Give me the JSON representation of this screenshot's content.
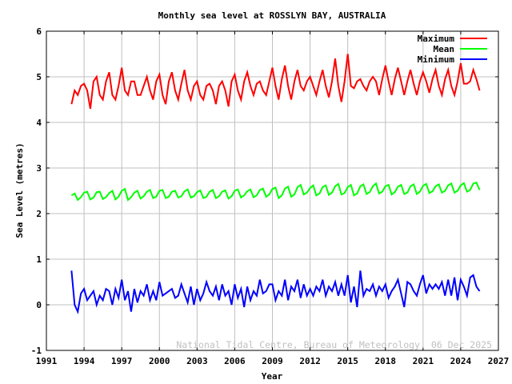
{
  "chart_data": {
    "type": "line",
    "title": "Monthly sea level at ROSSLYN BAY, AUSTRALIA",
    "xlabel": "Year",
    "ylabel": "Sea Level (metres)",
    "xlim": [
      1991,
      2027
    ],
    "ylim": [
      -1,
      6
    ],
    "xticks": [
      "1991",
      "1994",
      "1997",
      "2000",
      "2003",
      "2006",
      "2009",
      "2012",
      "2015",
      "2018",
      "2021",
      "2024",
      "2027"
    ],
    "yticks": [
      "-1",
      "0",
      "1",
      "2",
      "3",
      "4",
      "5",
      "6"
    ],
    "grid": true,
    "legend_position": "top-right",
    "watermark": "National Tidal Centre, Bureau of Meteorology, 06 Dec 2025",
    "x": [
      1993,
      1993.25,
      1993.5,
      1993.75,
      1994,
      1994.25,
      1994.5,
      1994.75,
      1995,
      1995.25,
      1995.5,
      1995.75,
      1996,
      1996.25,
      1996.5,
      1996.75,
      1997,
      1997.25,
      1997.5,
      1997.75,
      1998,
      1998.25,
      1998.5,
      1998.75,
      1999,
      1999.25,
      1999.5,
      1999.75,
      2000,
      2000.25,
      2000.5,
      2000.75,
      2001,
      2001.25,
      2001.5,
      2001.75,
      2002,
      2002.25,
      2002.5,
      2002.75,
      2003,
      2003.25,
      2003.5,
      2003.75,
      2004,
      2004.25,
      2004.5,
      2004.75,
      2005,
      2005.25,
      2005.5,
      2005.75,
      2006,
      2006.25,
      2006.5,
      2006.75,
      2007,
      2007.25,
      2007.5,
      2007.75,
      2008,
      2008.25,
      2008.5,
      2008.75,
      2009,
      2009.25,
      2009.5,
      2009.75,
      2010,
      2010.25,
      2010.5,
      2010.75,
      2011,
      2011.25,
      2011.5,
      2011.75,
      2012,
      2012.25,
      2012.5,
      2012.75,
      2013,
      2013.25,
      2013.5,
      2013.75,
      2014,
      2014.25,
      2014.5,
      2014.75,
      2015,
      2015.25,
      2015.5,
      2015.75,
      2016,
      2016.25,
      2016.5,
      2016.75,
      2017,
      2017.25,
      2017.5,
      2017.75,
      2018,
      2018.25,
      2018.5,
      2018.75,
      2019,
      2019.25,
      2019.5,
      2019.75,
      2020,
      2020.25,
      2020.5,
      2020.75,
      2021,
      2021.25,
      2021.5,
      2021.75,
      2022,
      2022.25,
      2022.5,
      2022.75,
      2023,
      2023.25,
      2023.5,
      2023.75,
      2024,
      2024.25,
      2024.5,
      2024.75,
      2025,
      2025.25,
      2025.5
    ],
    "series": [
      {
        "name": "Maximum",
        "color": "#ff0000",
        "values": [
          4.4,
          4.7,
          4.6,
          4.8,
          4.85,
          4.7,
          4.3,
          4.9,
          5.0,
          4.6,
          4.5,
          4.9,
          5.1,
          4.6,
          4.5,
          4.8,
          5.2,
          4.7,
          4.6,
          4.9,
          4.9,
          4.6,
          4.6,
          4.8,
          5.0,
          4.7,
          4.5,
          4.9,
          5.05,
          4.6,
          4.4,
          4.9,
          5.1,
          4.7,
          4.5,
          4.85,
          5.15,
          4.7,
          4.5,
          4.8,
          4.9,
          4.6,
          4.5,
          4.8,
          4.85,
          4.7,
          4.4,
          4.8,
          4.9,
          4.7,
          4.35,
          4.9,
          5.05,
          4.7,
          4.5,
          4.9,
          5.1,
          4.8,
          4.6,
          4.85,
          4.9,
          4.7,
          4.6,
          4.9,
          5.2,
          4.8,
          4.5,
          4.95,
          5.25,
          4.8,
          4.5,
          4.9,
          5.15,
          4.8,
          4.7,
          4.9,
          5.0,
          4.8,
          4.6,
          4.9,
          5.15,
          4.8,
          4.55,
          4.9,
          5.4,
          4.8,
          4.45,
          4.9,
          5.5,
          4.8,
          4.75,
          4.9,
          4.95,
          4.8,
          4.7,
          4.9,
          5.0,
          4.9,
          4.6,
          4.95,
          5.25,
          4.9,
          4.6,
          4.95,
          5.2,
          4.9,
          4.6,
          4.9,
          5.15,
          4.85,
          4.6,
          4.9,
          5.1,
          4.9,
          4.65,
          4.95,
          5.15,
          4.8,
          4.6,
          4.95,
          5.15,
          4.8,
          4.6,
          4.9,
          5.3,
          4.85,
          4.85,
          4.9,
          5.15,
          4.95,
          4.7
        ]
      },
      {
        "name": "Mean",
        "color": "#00ff00",
        "values": [
          2.4,
          2.44,
          2.3,
          2.36,
          2.46,
          2.48,
          2.31,
          2.35,
          2.47,
          2.48,
          2.32,
          2.36,
          2.45,
          2.5,
          2.31,
          2.37,
          2.5,
          2.54,
          2.3,
          2.36,
          2.46,
          2.5,
          2.33,
          2.38,
          2.48,
          2.52,
          2.34,
          2.37,
          2.5,
          2.52,
          2.34,
          2.37,
          2.48,
          2.5,
          2.35,
          2.38,
          2.49,
          2.53,
          2.35,
          2.38,
          2.47,
          2.51,
          2.34,
          2.37,
          2.48,
          2.52,
          2.34,
          2.38,
          2.48,
          2.51,
          2.33,
          2.38,
          2.5,
          2.53,
          2.35,
          2.4,
          2.49,
          2.53,
          2.36,
          2.4,
          2.52,
          2.55,
          2.37,
          2.42,
          2.54,
          2.57,
          2.34,
          2.4,
          2.55,
          2.59,
          2.37,
          2.42,
          2.58,
          2.63,
          2.42,
          2.46,
          2.56,
          2.62,
          2.4,
          2.44,
          2.58,
          2.62,
          2.41,
          2.46,
          2.6,
          2.65,
          2.42,
          2.45,
          2.58,
          2.63,
          2.4,
          2.44,
          2.6,
          2.64,
          2.43,
          2.47,
          2.6,
          2.66,
          2.44,
          2.48,
          2.6,
          2.63,
          2.42,
          2.47,
          2.59,
          2.63,
          2.43,
          2.46,
          2.6,
          2.64,
          2.43,
          2.48,
          2.61,
          2.65,
          2.45,
          2.49,
          2.6,
          2.64,
          2.46,
          2.5,
          2.62,
          2.66,
          2.46,
          2.5,
          2.62,
          2.67,
          2.48,
          2.52,
          2.66,
          2.68,
          2.52
        ]
      },
      {
        "name": "Minimum",
        "color": "#0000ff",
        "values": [
          0.75,
          0.0,
          -0.15,
          0.25,
          0.35,
          0.1,
          0.2,
          0.3,
          0.0,
          0.2,
          0.1,
          0.35,
          0.3,
          0.0,
          0.35,
          0.15,
          0.55,
          0.1,
          0.3,
          -0.15,
          0.35,
          0.05,
          0.3,
          0.2,
          0.45,
          0.1,
          0.3,
          0.1,
          0.5,
          0.2,
          0.25,
          0.3,
          0.35,
          0.15,
          0.2,
          0.45,
          0.25,
          0.05,
          0.4,
          0.0,
          0.35,
          0.1,
          0.25,
          0.5,
          0.3,
          0.2,
          0.4,
          0.1,
          0.45,
          0.2,
          0.3,
          0.0,
          0.45,
          0.15,
          0.35,
          -0.05,
          0.4,
          0.1,
          0.3,
          0.2,
          0.55,
          0.25,
          0.3,
          0.45,
          0.45,
          0.1,
          0.3,
          0.2,
          0.55,
          0.1,
          0.4,
          0.3,
          0.55,
          0.15,
          0.45,
          0.2,
          0.35,
          0.2,
          0.4,
          0.3,
          0.55,
          0.2,
          0.4,
          0.3,
          0.5,
          0.2,
          0.45,
          0.2,
          0.65,
          0.05,
          0.4,
          -0.05,
          0.75,
          0.2,
          0.35,
          0.3,
          0.45,
          0.2,
          0.4,
          0.3,
          0.45,
          0.15,
          0.3,
          0.4,
          0.55,
          0.25,
          -0.05,
          0.5,
          0.45,
          0.3,
          0.2,
          0.45,
          0.65,
          0.25,
          0.45,
          0.35,
          0.45,
          0.35,
          0.5,
          0.2,
          0.55,
          0.2,
          0.6,
          0.1,
          0.55,
          0.4,
          0.2,
          0.6,
          0.65,
          0.4,
          0.3
        ]
      }
    ]
  }
}
